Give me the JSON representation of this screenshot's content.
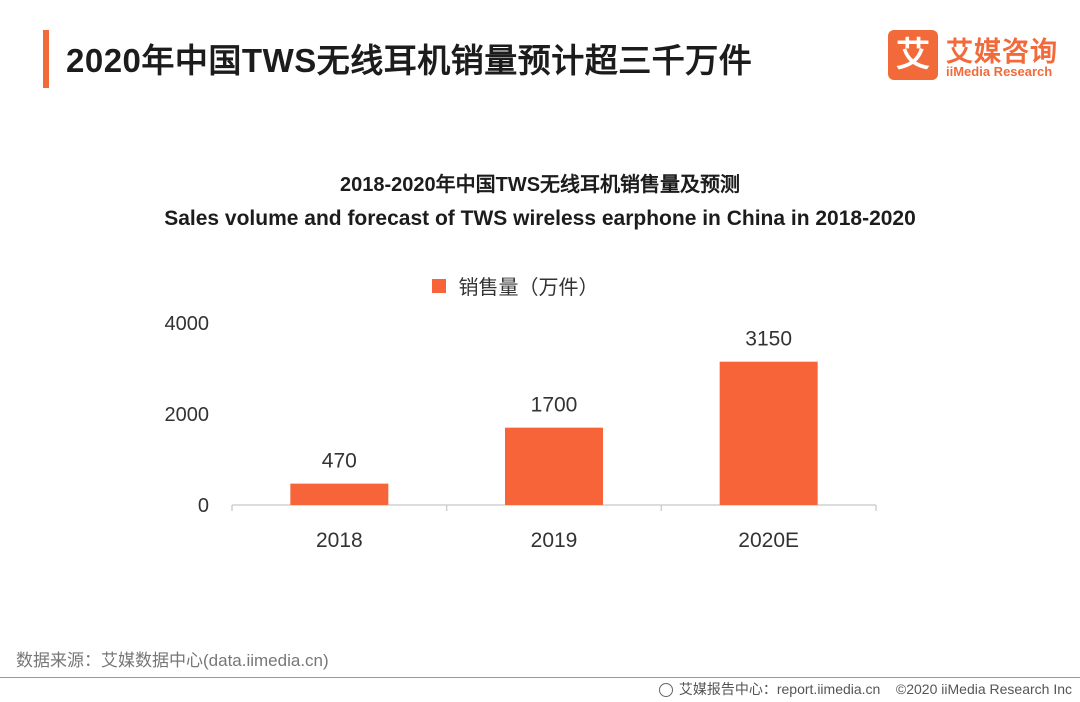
{
  "header": {
    "title": "2020年中国TWS无线耳机销量预计超三千万件"
  },
  "logo": {
    "mark": "艾",
    "name_cn": "艾媒咨询",
    "name_en": "iiMedia Research",
    "brand_color": "#f26a3a"
  },
  "chart_data": {
    "type": "bar",
    "title": "2018-2020年中国TWS无线耳机销售量及预测",
    "subtitle": "Sales volume and forecast of TWS wireless earphone in China in 2018-2020",
    "categories": [
      "2018",
      "2019",
      "2020E"
    ],
    "series": [
      {
        "name": "销售量（万件）",
        "values": [
          470,
          1700,
          3150
        ],
        "color": "#f7643a"
      }
    ],
    "data_labels": [
      "470",
      "1700",
      "3150"
    ],
    "ylim": [
      0,
      4000
    ],
    "yticks": [
      "0",
      "2000",
      "4000"
    ],
    "xlabel": "",
    "ylabel": "",
    "grid": false,
    "legend_position": "top-center"
  },
  "footer": {
    "source": "数据来源：艾媒数据中心(data.iimedia.cn)",
    "report_center": "艾媒报告中心：report.iimedia.cn",
    "copyright": "©2020  iiMedia Research  Inc"
  }
}
